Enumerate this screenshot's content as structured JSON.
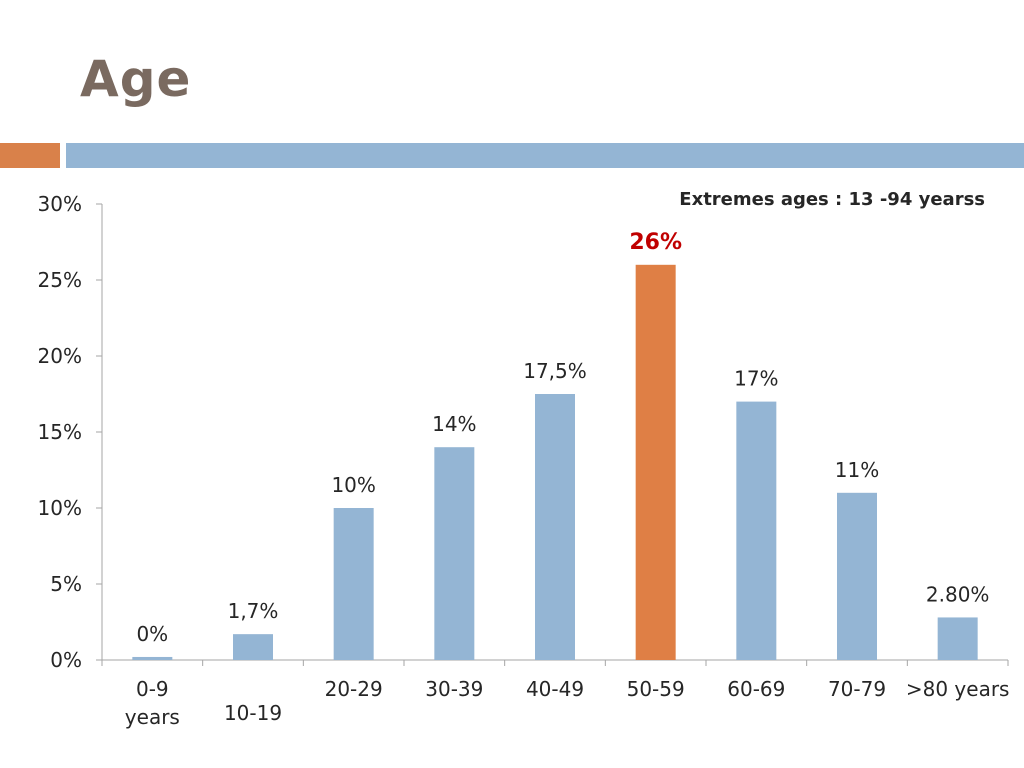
{
  "slide": {
    "title": "Age"
  },
  "theme": {
    "accent_orange": "#d9814a",
    "accent_blue": "#94b5d4",
    "bar_blue": "#94b5d4",
    "bar_highlight": "#df7f45",
    "highlight_label_color": "#c00000",
    "title_color": "#7a6a60",
    "axis_color": "#a6a6a6"
  },
  "chart_data": {
    "type": "bar",
    "annotation": "Extremes ages : 13 -94 yearss",
    "categories": [
      "0-9 years",
      "10-19",
      "20-29",
      "30-39",
      "40-49",
      "50-59",
      "60-69",
      "70-79",
      ">80 years"
    ],
    "values": [
      0.2,
      1.7,
      10,
      14,
      17.5,
      26,
      17,
      11,
      2.8
    ],
    "data_labels": [
      "0%",
      "1,7%",
      "10%",
      "14%",
      "17,5%",
      "26%",
      "17%",
      "11%",
      "2.80%"
    ],
    "highlight_index": 5,
    "ylim": [
      0,
      30
    ],
    "yticks": [
      0,
      5,
      10,
      15,
      20,
      25,
      30
    ],
    "ytick_labels": [
      "0%",
      "5%",
      "10%",
      "15%",
      "20%",
      "25%",
      "30%"
    ],
    "grid": false,
    "legend": "none"
  }
}
